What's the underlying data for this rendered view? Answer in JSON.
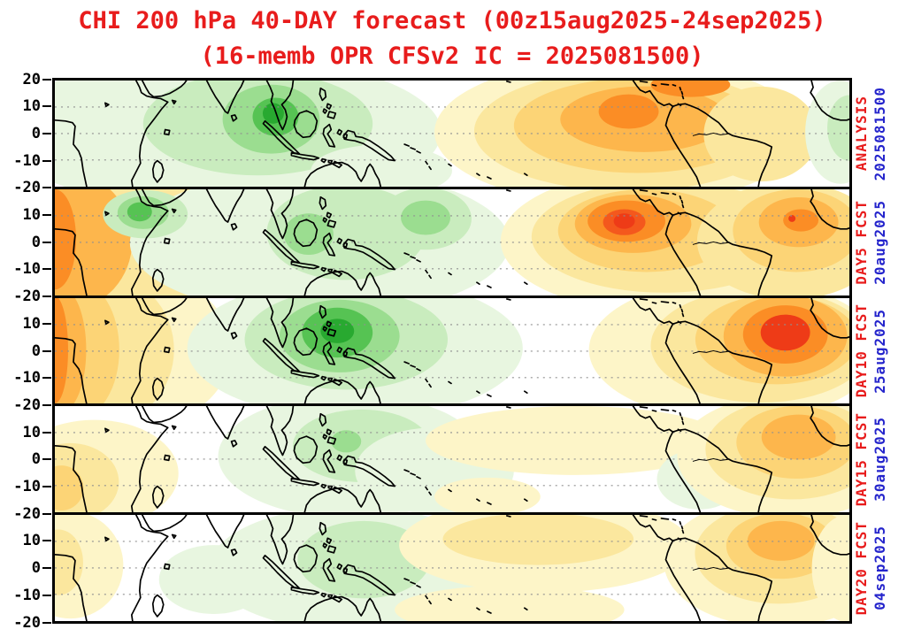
{
  "title": {
    "line1": "CHI 200 hPa 40-DAY forecast (00z15aug2025-24sep2025)",
    "line2": "(16-memb OPR CFSv2 IC = 2025081500)"
  },
  "colors": {
    "title_red": "#e81c1c",
    "side_label_red": "#e81c1c",
    "side_date_blue": "#2424cc",
    "coastline": "#000000",
    "gridline": "#909090",
    "border": "#000000"
  },
  "axis": {
    "top_label": "20",
    "inner_labels": [
      "10",
      "0",
      "-10"
    ],
    "boundary_label": "-20"
  },
  "chart_data": {
    "type": "heatmap",
    "subtype": "filled-contour latitude-band map panels (velocity potential CHI anomalies)",
    "title": "CHI 200 hPa 40-DAY forecast (00z15aug2025-24sep2025)",
    "subtitle": "(16-memb OPR CFSv2 IC = 2025081500)",
    "geo": {
      "lon_range": [
        0,
        360
      ],
      "lat_range": [
        -20,
        20
      ],
      "grid_lats": [
        10,
        0,
        -10
      ],
      "tick_lats": [
        20,
        10,
        0,
        -10,
        -20
      ],
      "grid_style": "dotted"
    },
    "legend_position": "none",
    "palette": {
      "g1": "#e8f6e0",
      "g2": "#c9ecbe",
      "g3": "#9bdd90",
      "g4": "#56c353",
      "g5": "#28a930",
      "y1": "#fdf5c8",
      "y2": "#fbe79e",
      "y3": "#fcd476",
      "o1": "#fdb64c",
      "o2": "#fb8d25",
      "o3": "#f4581d",
      "r": "#ee3b17"
    },
    "panels": [
      {
        "label": "ANALYSIS",
        "date": "2025081500",
        "anomalies": [
          {
            "lon": 75,
            "lat": 0.5,
            "rlon": 100,
            "rlat": 29,
            "level": "g1"
          },
          {
            "lon": 92,
            "lat": 3.7,
            "rlon": 52,
            "rlat": 19.5,
            "level": "g2"
          },
          {
            "lon": 98,
            "lat": 5.4,
            "rlon": 22,
            "rlat": 13,
            "level": "g3"
          },
          {
            "lon": 100,
            "lat": 6.3,
            "rlon": 10.4,
            "rlat": 7.2,
            "level": "g4"
          },
          {
            "lon": 99,
            "lat": 7.6,
            "rlon": 4.8,
            "rlat": 3.9,
            "level": "g5"
          },
          {
            "lon": 148,
            "lat": -14,
            "rlon": 32,
            "rlat": 9.8,
            "level": "g1"
          },
          {
            "lon": 256,
            "lat": 0.5,
            "rlon": 84,
            "rlat": 27.6,
            "level": "y1"
          },
          {
            "lon": 260,
            "lat": 1,
            "rlon": 70,
            "rlat": 22.8,
            "level": "y2"
          },
          {
            "lon": 264,
            "lat": 3,
            "rlon": 56,
            "rlat": 17.9,
            "level": "y3"
          },
          {
            "lon": 267,
            "lat": 5.4,
            "rlon": 38,
            "rlat": 12.4,
            "level": "o1"
          },
          {
            "lon": 260,
            "lat": 8.3,
            "rlon": 13.6,
            "rlat": 6.5,
            "level": "o2"
          },
          {
            "lon": 288,
            "lat": 18.4,
            "rlon": 18,
            "rlat": 4.6,
            "level": "o2"
          },
          {
            "lon": 320,
            "lat": -0.2,
            "rlon": 26,
            "rlat": 17.9,
            "level": "y2"
          },
          {
            "lon": 356,
            "lat": 0.5,
            "rlon": 16,
            "rlat": 19.5,
            "level": "g1"
          },
          {
            "lon": 360,
            "lat": 2.1,
            "rlon": 10,
            "rlat": 12.4,
            "level": "g2"
          }
        ]
      },
      {
        "label": "DAY5 FCST",
        "date": "20aug2025",
        "anomalies": [
          {
            "lon": 38,
            "lat": 0.5,
            "rlon": 66,
            "rlat": 31,
            "level": "y1"
          },
          {
            "lon": 26,
            "lat": 0.5,
            "rlon": 48,
            "rlat": 29.3,
            "level": "y2"
          },
          {
            "lon": 7,
            "lat": 0.5,
            "rlon": 28,
            "rlat": 25.4,
            "level": "o1"
          },
          {
            "lon": 0,
            "lat": 1.1,
            "rlon": 9.6,
            "rlat": 18.9,
            "level": "o2"
          },
          {
            "lon": 120,
            "lat": -0.2,
            "rlon": 86,
            "rlat": 27.6,
            "level": "g1"
          },
          {
            "lon": 132,
            "lat": 3.7,
            "rlon": 36,
            "rlat": 17.9,
            "level": "g2"
          },
          {
            "lon": 115,
            "lat": 3.1,
            "rlon": 11.2,
            "rlat": 7.8,
            "level": "g3"
          },
          {
            "lon": 41,
            "lat": 10.6,
            "rlon": 19.2,
            "rlat": 9.1,
            "level": "g2"
          },
          {
            "lon": 40,
            "lat": 11.2,
            "rlon": 11.6,
            "rlat": 6.2,
            "level": "g3"
          },
          {
            "lon": 38.4,
            "lat": 11.5,
            "rlon": 5.6,
            "rlat": 3.6,
            "level": "g4"
          },
          {
            "lon": 168,
            "lat": 8.9,
            "rlon": 20.8,
            "rlat": 11.7,
            "level": "g2"
          },
          {
            "lon": 168,
            "lat": 9.3,
            "rlon": 11.2,
            "rlat": 6.5,
            "level": "g3"
          },
          {
            "lon": 280,
            "lat": 0.5,
            "rlon": 78,
            "rlat": 27.6,
            "level": "y1"
          },
          {
            "lon": 276,
            "lat": 2.1,
            "rlon": 60,
            "rlat": 21.1,
            "level": "y2"
          },
          {
            "lon": 268,
            "lat": 4.4,
            "rlon": 40,
            "rlat": 15.6,
            "level": "y3"
          },
          {
            "lon": 262,
            "lat": 7,
            "rlon": 26.4,
            "rlat": 11,
            "level": "o1"
          },
          {
            "lon": 259,
            "lat": 8,
            "rlon": 17.6,
            "rlat": 7.8,
            "level": "o2"
          },
          {
            "lon": 258,
            "lat": 7.6,
            "rlon": 9.6,
            "rlat": 4.9,
            "level": "o3"
          },
          {
            "lon": 258,
            "lat": 8,
            "rlon": 4.8,
            "rlat": 2.9,
            "level": "r"
          },
          {
            "lon": 333,
            "lat": 0.5,
            "rlon": 42,
            "rlat": 22.1,
            "level": "y2"
          },
          {
            "lon": 336,
            "lat": 4.4,
            "rlon": 28.8,
            "rlat": 15.6,
            "level": "y3"
          },
          {
            "lon": 337,
            "lat": 7.6,
            "rlon": 18,
            "rlat": 9.4,
            "level": "o1"
          },
          {
            "lon": 338,
            "lat": 8.3,
            "rlon": 8,
            "rlat": 4.2,
            "level": "o2"
          },
          {
            "lon": 334,
            "lat": 9,
            "rlon": 1.6,
            "rlat": 1.3,
            "level": "r"
          }
        ]
      },
      {
        "label": "DAY10 FCST",
        "date": "25aug2025",
        "anomalies": [
          {
            "lon": 34,
            "lat": 0.5,
            "rlon": 46,
            "rlat": 30,
            "level": "y1"
          },
          {
            "lon": 21,
            "lat": 0.5,
            "rlon": 33,
            "rlat": 28.6,
            "level": "y2"
          },
          {
            "lon": 10,
            "lat": 0.5,
            "rlon": 19.2,
            "rlat": 26,
            "level": "y3"
          },
          {
            "lon": 3,
            "lat": 0.5,
            "rlon": 11.2,
            "rlat": 23.4,
            "level": "o1"
          },
          {
            "lon": 0,
            "lat": 0.5,
            "rlon": 6,
            "rlat": 20.2,
            "level": "o2"
          },
          {
            "lon": 136,
            "lat": 1.1,
            "rlon": 76,
            "rlat": 26.7,
            "level": "g1"
          },
          {
            "lon": 132,
            "lat": 4.4,
            "rlon": 46,
            "rlat": 18.9,
            "level": "g2"
          },
          {
            "lon": 129,
            "lat": 5.7,
            "rlon": 27.2,
            "rlat": 13.7,
            "level": "g3"
          },
          {
            "lon": 128,
            "lat": 7,
            "rlon": 16,
            "rlat": 9.4,
            "level": "g4"
          },
          {
            "lon": 128,
            "lat": 7.6,
            "rlon": 7.6,
            "rlat": 4.6,
            "level": "g5"
          },
          {
            "lon": 308,
            "lat": 0.5,
            "rlon": 66,
            "rlat": 26.7,
            "level": "y1"
          },
          {
            "lon": 320,
            "lat": 2.1,
            "rlon": 50,
            "rlat": 21.5,
            "level": "y2"
          },
          {
            "lon": 327,
            "lat": 4.4,
            "rlon": 36.8,
            "rlat": 16.9,
            "level": "y3"
          },
          {
            "lon": 331,
            "lat": 5.7,
            "rlon": 28,
            "rlat": 15.3,
            "level": "o1"
          },
          {
            "lon": 331,
            "lat": 6.3,
            "rlon": 19.2,
            "rlat": 11,
            "level": "o2"
          },
          {
            "lon": 331,
            "lat": 7,
            "rlon": 11.2,
            "rlat": 6.8,
            "level": "r"
          }
        ]
      },
      {
        "label": "DAY15 FCST",
        "date": "30aug2025",
        "anomalies": [
          {
            "lon": 18,
            "lat": -5.4,
            "rlon": 38,
            "rlat": 20.2,
            "level": "y1"
          },
          {
            "lon": 7,
            "lat": -8.6,
            "rlon": 22,
            "rlat": 14.6,
            "level": "y2"
          },
          {
            "lon": 3,
            "lat": -10.9,
            "rlon": 10,
            "rlat": 8.5,
            "level": "y3"
          },
          {
            "lon": 134,
            "lat": 1.1,
            "rlon": 60,
            "rlat": 23.4,
            "level": "g1"
          },
          {
            "lon": 139,
            "lat": 5,
            "rlon": 31.2,
            "rlat": 13.7,
            "level": "g2"
          },
          {
            "lon": 132,
            "lat": 6.7,
            "rlon": 6.8,
            "rlat": 4.2,
            "level": "g3"
          },
          {
            "lon": 172,
            "lat": -4.4,
            "rlon": 36,
            "rlat": 16.3,
            "level": "g1"
          },
          {
            "lon": 236,
            "lat": 7,
            "rlon": 68,
            "rlat": 13,
            "level": "y1"
          },
          {
            "lon": 196,
            "lat": -14.2,
            "rlon": 24,
            "rlat": 7.2,
            "level": "y1"
          },
          {
            "lon": 292,
            "lat": -7.6,
            "rlon": 19.2,
            "rlat": 11.4,
            "level": "g1"
          },
          {
            "lon": 333,
            "lat": 1.1,
            "rlon": 51,
            "rlat": 23.4,
            "level": "y1"
          },
          {
            "lon": 334,
            "lat": 3.7,
            "rlon": 39.2,
            "rlat": 18.9,
            "level": "y2"
          },
          {
            "lon": 336,
            "lat": 6.3,
            "rlon": 27.2,
            "rlat": 13.7,
            "level": "y3"
          },
          {
            "lon": 337,
            "lat": 8.3,
            "rlon": 16.8,
            "rlat": 8.5,
            "level": "o1"
          }
        ]
      },
      {
        "label": "DAY20 FCST",
        "date": "04sep2025",
        "anomalies": [
          {
            "lon": 7,
            "lat": 1.1,
            "rlon": 24,
            "rlat": 20.2,
            "level": "y1"
          },
          {
            "lon": 1.6,
            "lat": 2.1,
            "rlon": 11.2,
            "rlat": 12.4,
            "level": "y2"
          },
          {
            "lon": 72,
            "lat": -4.4,
            "rlon": 24.8,
            "rlat": 13,
            "level": "g1"
          },
          {
            "lon": 134,
            "lat": -0.2,
            "rlon": 64,
            "rlat": 23.4,
            "level": "g1"
          },
          {
            "lon": 140,
            "lat": 3.1,
            "rlon": 30,
            "rlat": 14.6,
            "level": "g2"
          },
          {
            "lon": 145,
            "lat": 6.3,
            "rlon": 12,
            "rlat": 7.2,
            "level": "g2"
          },
          {
            "lon": 222,
            "lat": 8.6,
            "rlon": 66,
            "rlat": 17.9,
            "level": "y1"
          },
          {
            "lon": 219,
            "lat": 10.9,
            "rlon": 43.2,
            "rlat": 9.8,
            "level": "y2"
          },
          {
            "lon": 206,
            "lat": -15.8,
            "rlon": 52,
            "rlat": 9.1,
            "level": "y1"
          },
          {
            "lon": 327,
            "lat": 2.1,
            "rlon": 51,
            "rlat": 24.4,
            "level": "y1"
          },
          {
            "lon": 328,
            "lat": 5.4,
            "rlon": 38,
            "rlat": 18.9,
            "level": "y2"
          },
          {
            "lon": 329,
            "lat": 8.3,
            "rlon": 24.8,
            "rlat": 12.4,
            "level": "y3"
          },
          {
            "lon": 329,
            "lat": 10.2,
            "rlon": 15.2,
            "rlat": 7.5,
            "level": "o1"
          },
          {
            "lon": 359,
            "lat": -0.2,
            "rlon": 16,
            "rlat": 20.2,
            "level": "y1"
          }
        ]
      }
    ]
  }
}
